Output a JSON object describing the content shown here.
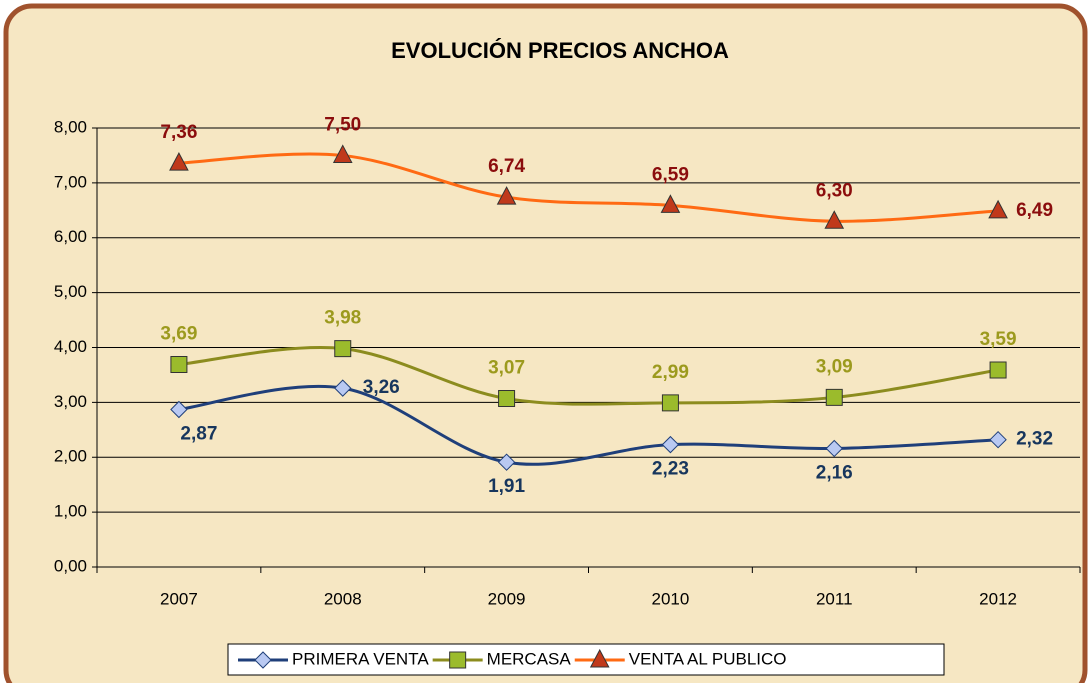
{
  "chart_data": {
    "type": "line",
    "title": "EVOLUCIÓN PRECIOS ANCHOA",
    "categories": [
      "2007",
      "2008",
      "2009",
      "2010",
      "2011",
      "2012"
    ],
    "series": [
      {
        "name": "PRIMERA VENTA",
        "color": "#1f3f7a",
        "marker_color": "#b9c9f2",
        "label_color": "#17365d",
        "values": [
          2.87,
          3.26,
          1.91,
          2.23,
          2.16,
          2.32
        ],
        "value_labels": [
          "2,87",
          "3,26",
          "1,91",
          "2,23",
          "2,16",
          "2,32"
        ]
      },
      {
        "name": "MERCASA",
        "color": "#8c8c1e",
        "marker_color": "#9bbb2c",
        "label_color": "#9c9a1e",
        "values": [
          3.69,
          3.98,
          3.07,
          2.99,
          3.09,
          3.59
        ],
        "value_labels": [
          "3,69",
          "3,98",
          "3,07",
          "2,99",
          "3,09",
          "3,59"
        ]
      },
      {
        "name": "VENTA AL PUBLICO",
        "color": "#ff6a13",
        "marker_color": "#c0391b",
        "label_color": "#8b0d0d",
        "values": [
          7.36,
          7.5,
          6.74,
          6.59,
          6.3,
          6.49
        ],
        "value_labels": [
          "7,36",
          "7,50",
          "6,74",
          "6,59",
          "6,30",
          "6,49"
        ]
      }
    ],
    "ylim": [
      0,
      8
    ],
    "yticks": [
      {
        "value": 0,
        "label": "0,00"
      },
      {
        "value": 1,
        "label": "1,00"
      },
      {
        "value": 2,
        "label": "2,00"
      },
      {
        "value": 3,
        "label": "3,00"
      },
      {
        "value": 4,
        "label": "4,00"
      },
      {
        "value": 5,
        "label": "5,00"
      },
      {
        "value": 6,
        "label": "6,00"
      },
      {
        "value": 7,
        "label": "7,00"
      },
      {
        "value": 8,
        "label": "8,00"
      }
    ],
    "grid": true,
    "legend": "bottom",
    "smooth": true
  }
}
